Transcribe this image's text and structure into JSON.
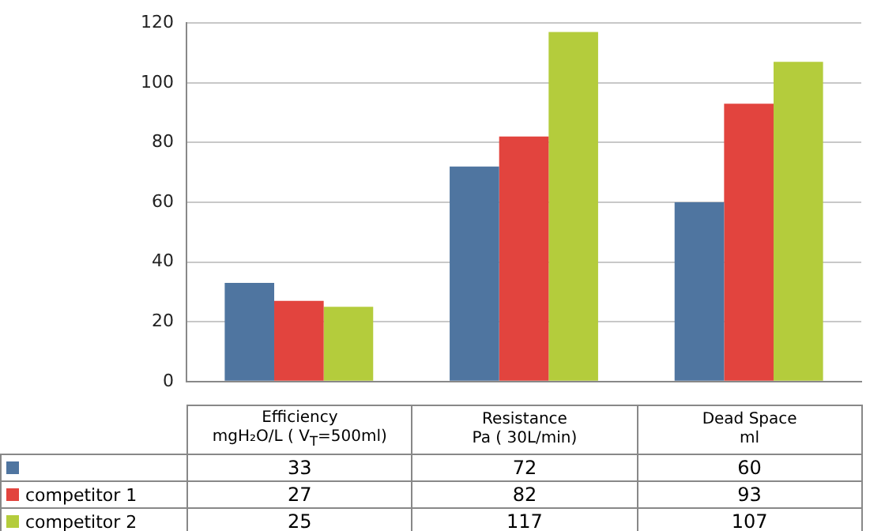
{
  "chart_data": {
    "type": "bar",
    "categories": [
      "Efficiency\nmgH₂O/L ( V$_{T}$=500ml)",
      "Resistance\nPa ( 30L/min)",
      "Dead Space\nml"
    ],
    "series": [
      {
        "color": "#4f75a0",
        "values": [
          33,
          72,
          60
        ]
      },
      {
        "name": "competitor 1",
        "color": "#e2443e",
        "values": [
          27,
          82,
          93
        ]
      },
      {
        "name": "competitor 2",
        "color": "#b4cc3c",
        "values": [
          25,
          117,
          107
        ]
      }
    ],
    "ylim": [
      0,
      120
    ],
    "yticks": [
      0,
      20,
      40,
      60,
      80,
      100,
      120
    ],
    "grid": "y",
    "legend": "bottom",
    "data_labels": true
  }
}
